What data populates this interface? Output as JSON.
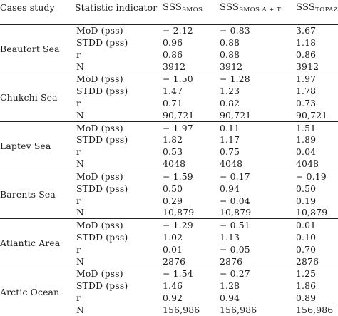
{
  "header": {
    "col_case": "Cases study",
    "col_indicator": "Statistic indicator",
    "col_smos_main": "SSS",
    "col_smos_sub": "SMOS",
    "col_smosat_main": "SSS",
    "col_smosat_sub": "SMOS A + T",
    "col_topaz_main": "SSS",
    "col_topaz_sub": "TOPAZ"
  },
  "groups": [
    {
      "case": "Beaufort Sea",
      "rows": [
        {
          "indicator": "MoD (pss)",
          "smos": "− 2.12",
          "smosat": "− 0.83",
          "topaz": "3.67"
        },
        {
          "indicator": "STDD (pss)",
          "smos": "0.96",
          "smosat": "0.88",
          "topaz": "1.18"
        },
        {
          "indicator": "r",
          "smos": "0.86",
          "smosat": "0.88",
          "topaz": "0.86"
        },
        {
          "indicator": "N",
          "smos": "3912",
          "smosat": "3912",
          "topaz": "3912"
        }
      ]
    },
    {
      "case": "Chukchi Sea",
      "rows": [
        {
          "indicator": "MoD (pss)",
          "smos": "− 1.50",
          "smosat": "− 1.28",
          "topaz": "1.97"
        },
        {
          "indicator": "STDD (pss)",
          "smos": "1.47",
          "smosat": "1.23",
          "topaz": "1.78"
        },
        {
          "indicator": "r",
          "smos": "0.71",
          "smosat": "0.82",
          "topaz": "0.73"
        },
        {
          "indicator": "N",
          "smos": "90,721",
          "smosat": "90,721",
          "topaz": "90,721"
        }
      ]
    },
    {
      "case": "Laptev Sea",
      "rows": [
        {
          "indicator": "MoD (pss)",
          "smos": "− 1.97",
          "smosat": "0.11",
          "topaz": "1.51"
        },
        {
          "indicator": "STDD (pss)",
          "smos": "1.82",
          "smosat": "1.17",
          "topaz": "1.89"
        },
        {
          "indicator": "r",
          "smos": "0.53",
          "smosat": "0.75",
          "topaz": "0.04"
        },
        {
          "indicator": "N",
          "smos": "4048",
          "smosat": "4048",
          "topaz": "4048"
        }
      ]
    },
    {
      "case": "Barents Sea",
      "rows": [
        {
          "indicator": "MoD (pss)",
          "smos": "− 1.59",
          "smosat": "− 0.17",
          "topaz": "− 0.19"
        },
        {
          "indicator": "STDD (pss)",
          "smos": "0.50",
          "smosat": "0.94",
          "topaz": "0.50"
        },
        {
          "indicator": "r",
          "smos": "0.29",
          "smosat": "− 0.04",
          "topaz": "0.19"
        },
        {
          "indicator": "N",
          "smos": "10,879",
          "smosat": "10,879",
          "topaz": "10,879"
        }
      ]
    },
    {
      "case": "Atlantic Area",
      "rows": [
        {
          "indicator": "MoD (pss)",
          "smos": "− 1.29",
          "smosat": "− 0.51",
          "topaz": "0.01"
        },
        {
          "indicator": "STDD (pss)",
          "smos": "1.02",
          "smosat": "1.13",
          "topaz": "0.10"
        },
        {
          "indicator": "r",
          "smos": "0.01",
          "smosat": "− 0.05",
          "topaz": "0.70"
        },
        {
          "indicator": "N",
          "smos": "2876",
          "smosat": "2876",
          "topaz": "2876"
        }
      ]
    },
    {
      "case": "Arctic Ocean",
      "rows": [
        {
          "indicator": "MoD (pss)",
          "smos": "− 1.54",
          "smosat": "− 0.27",
          "topaz": "1.25"
        },
        {
          "indicator": "STDD (pss)",
          "smos": "1.46",
          "smosat": "1.28",
          "topaz": "1.86"
        },
        {
          "indicator": "r",
          "smos": "0.92",
          "smosat": "0.94",
          "topaz": "0.89"
        },
        {
          "indicator": "N",
          "smos": "156,986",
          "smosat": "156,986",
          "topaz": "156,986"
        }
      ]
    }
  ]
}
